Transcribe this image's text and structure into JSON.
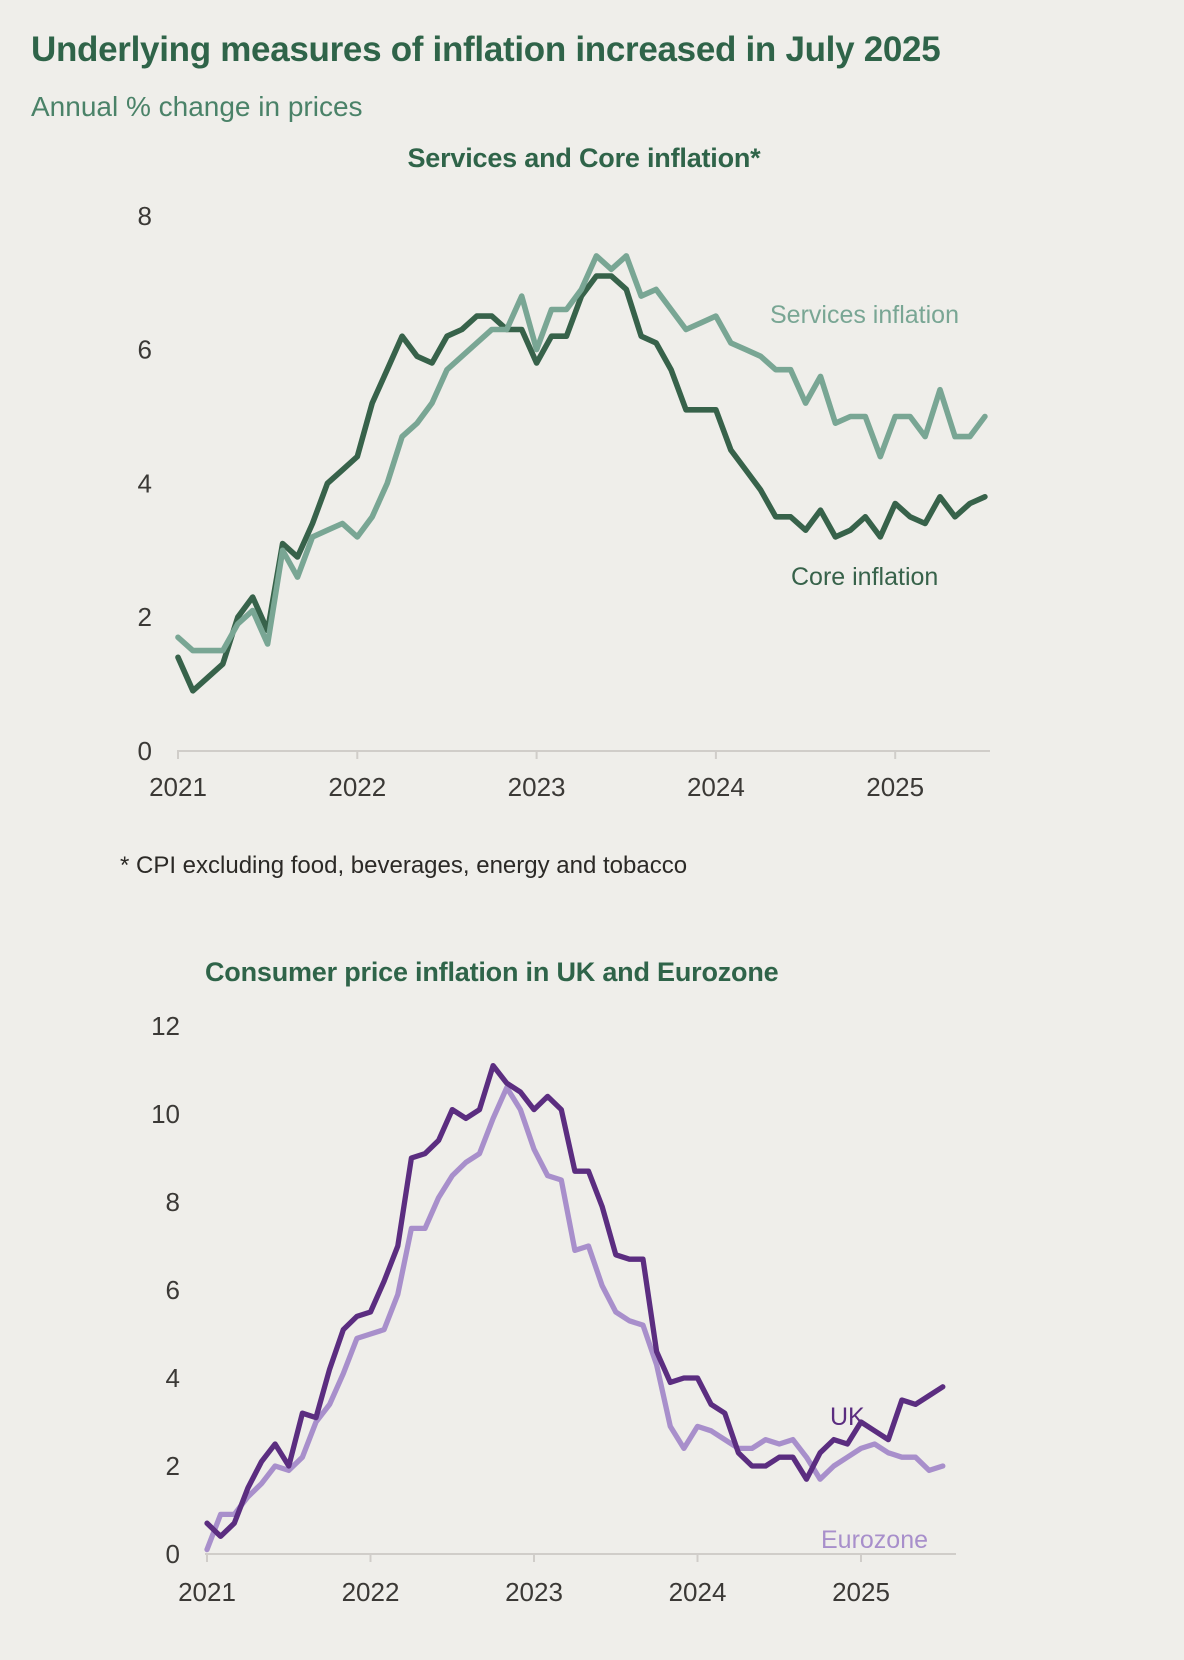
{
  "page": {
    "background_color": "#efeeea"
  },
  "header": {
    "title": "Underlying measures of inflation increased in July 2025",
    "subtitle": "Annual % change in prices"
  },
  "footnote": {
    "text": "* CPI excluding food, beverages, energy and tobacco"
  },
  "colors": {
    "heading_green": "#2f6449",
    "subtitle_green": "#4a8268",
    "tick_text": "#3b3936",
    "axis_line": "#d0cdc9"
  },
  "chart_data": [
    {
      "type": "line",
      "title": "Services and Core inflation*",
      "x_start": "2021-01",
      "x_end": "2025-07",
      "frequency": "monthly",
      "xticks": [
        "2021",
        "2022",
        "2023",
        "2024",
        "2025"
      ],
      "yticks": [
        0,
        2,
        4,
        6,
        8
      ],
      "ylim": [
        0,
        8
      ],
      "grid": false,
      "legend_position": "inline-labels",
      "series": [
        {
          "name": "Core inflation",
          "color": "#37624a",
          "values": [
            1.4,
            0.9,
            1.1,
            1.3,
            2.0,
            2.3,
            1.8,
            3.1,
            2.9,
            3.4,
            4.0,
            4.2,
            4.4,
            5.2,
            5.7,
            6.2,
            5.9,
            5.8,
            6.2,
            6.3,
            6.5,
            6.5,
            6.3,
            6.3,
            5.8,
            6.2,
            6.2,
            6.8,
            7.1,
            7.1,
            6.9,
            6.2,
            6.1,
            5.7,
            5.1,
            5.1,
            5.1,
            4.5,
            4.2,
            3.9,
            3.5,
            3.5,
            3.3,
            3.6,
            3.2,
            3.3,
            3.5,
            3.2,
            3.7,
            3.5,
            3.4,
            3.8,
            3.5,
            3.7,
            3.8
          ]
        },
        {
          "name": "Services inflation",
          "color": "#79a694",
          "values": [
            1.7,
            1.5,
            1.5,
            1.5,
            1.9,
            2.1,
            1.6,
            3.0,
            2.6,
            3.2,
            3.3,
            3.4,
            3.2,
            3.5,
            4.0,
            4.7,
            4.9,
            5.2,
            5.7,
            5.9,
            6.1,
            6.3,
            6.3,
            6.8,
            6.0,
            6.6,
            6.6,
            6.9,
            7.4,
            7.2,
            7.4,
            6.8,
            6.9,
            6.6,
            6.3,
            6.4,
            6.5,
            6.1,
            6.0,
            5.9,
            5.7,
            5.7,
            5.2,
            5.6,
            4.9,
            5.0,
            5.0,
            4.4,
            5.0,
            5.0,
            4.7,
            5.4,
            4.7,
            4.7,
            5.0
          ]
        }
      ]
    },
    {
      "type": "line",
      "title": "Consumer price inflation in UK and Eurozone",
      "x_start": "2021-01",
      "x_end": "2025-07",
      "frequency": "monthly",
      "xticks": [
        "2021",
        "2022",
        "2023",
        "2024",
        "2025"
      ],
      "yticks": [
        0,
        2,
        4,
        6,
        8,
        10,
        12
      ],
      "ylim": [
        0,
        12
      ],
      "grid": false,
      "legend_position": "inline-labels",
      "series": [
        {
          "name": "Eurozone",
          "color": "#a88fcb",
          "values": [
            0.1,
            0.9,
            0.9,
            1.3,
            1.6,
            2.0,
            1.9,
            2.2,
            3.0,
            3.4,
            4.1,
            4.9,
            5.0,
            5.1,
            5.9,
            7.4,
            7.4,
            8.1,
            8.6,
            8.9,
            9.1,
            9.9,
            10.6,
            10.1,
            9.2,
            8.6,
            8.5,
            6.9,
            7.0,
            6.1,
            5.5,
            5.3,
            5.2,
            4.3,
            2.9,
            2.4,
            2.9,
            2.8,
            2.6,
            2.4,
            2.4,
            2.6,
            2.5,
            2.6,
            2.2,
            1.7,
            2.0,
            2.2,
            2.4,
            2.5,
            2.3,
            2.2,
            2.2,
            1.9,
            2.0
          ]
        },
        {
          "name": "UK",
          "color": "#5b2d80",
          "values": [
            0.7,
            0.4,
            0.7,
            1.5,
            2.1,
            2.5,
            2.0,
            3.2,
            3.1,
            4.2,
            5.1,
            5.4,
            5.5,
            6.2,
            7.0,
            9.0,
            9.1,
            9.4,
            10.1,
            9.9,
            10.1,
            11.1,
            10.7,
            10.5,
            10.1,
            10.4,
            10.1,
            8.7,
            8.7,
            7.9,
            6.8,
            6.7,
            6.7,
            4.6,
            3.9,
            4.0,
            4.0,
            3.4,
            3.2,
            2.3,
            2.0,
            2.0,
            2.2,
            2.2,
            1.7,
            2.3,
            2.6,
            2.5,
            3.0,
            2.8,
            2.6,
            3.5,
            3.4,
            3.6,
            3.8
          ]
        }
      ]
    }
  ]
}
